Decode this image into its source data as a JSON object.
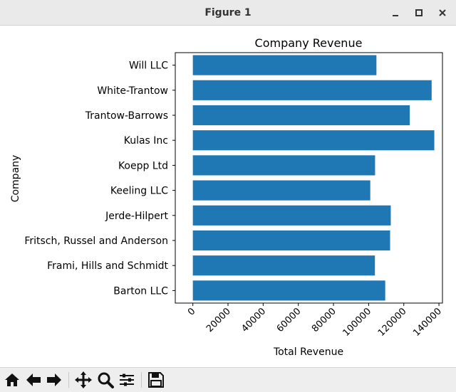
{
  "window": {
    "title": "Figure 1",
    "controls": [
      "minimize-icon",
      "maximize-icon",
      "close-icon"
    ]
  },
  "toolbar": {
    "tools": [
      "home-icon",
      "back-arrow-icon",
      "forward-arrow-icon",
      "pan-icon",
      "zoom-icon",
      "configure-subplots-icon",
      "save-icon"
    ]
  },
  "chart_data": {
    "type": "bar",
    "orientation": "horizontal",
    "title": "Company Revenue",
    "xlabel": "Total Revenue",
    "ylabel": "Company",
    "categories": [
      "Barton LLC",
      "Frami, Hills and Schmidt",
      "Fritsch, Russel and Anderson",
      "Jerde-Hilpert",
      "Keeling LLC",
      "Koepp Ltd",
      "Kulas Inc",
      "Trantow-Barrows",
      "White-Trantow",
      "Will LLC"
    ],
    "values": [
      109438,
      103569,
      112214,
      112591,
      100934,
      103660,
      137351,
      123381,
      135841,
      104437
    ],
    "xlim": [
      -10000,
      142000
    ],
    "xticks": [
      0,
      20000,
      40000,
      60000,
      80000,
      100000,
      120000,
      140000
    ],
    "xtick_labels": [
      "0",
      "20000",
      "40000",
      "60000",
      "80000",
      "100000",
      "120000",
      "140000"
    ],
    "bar_color": "#1f77b4",
    "grid": false
  }
}
